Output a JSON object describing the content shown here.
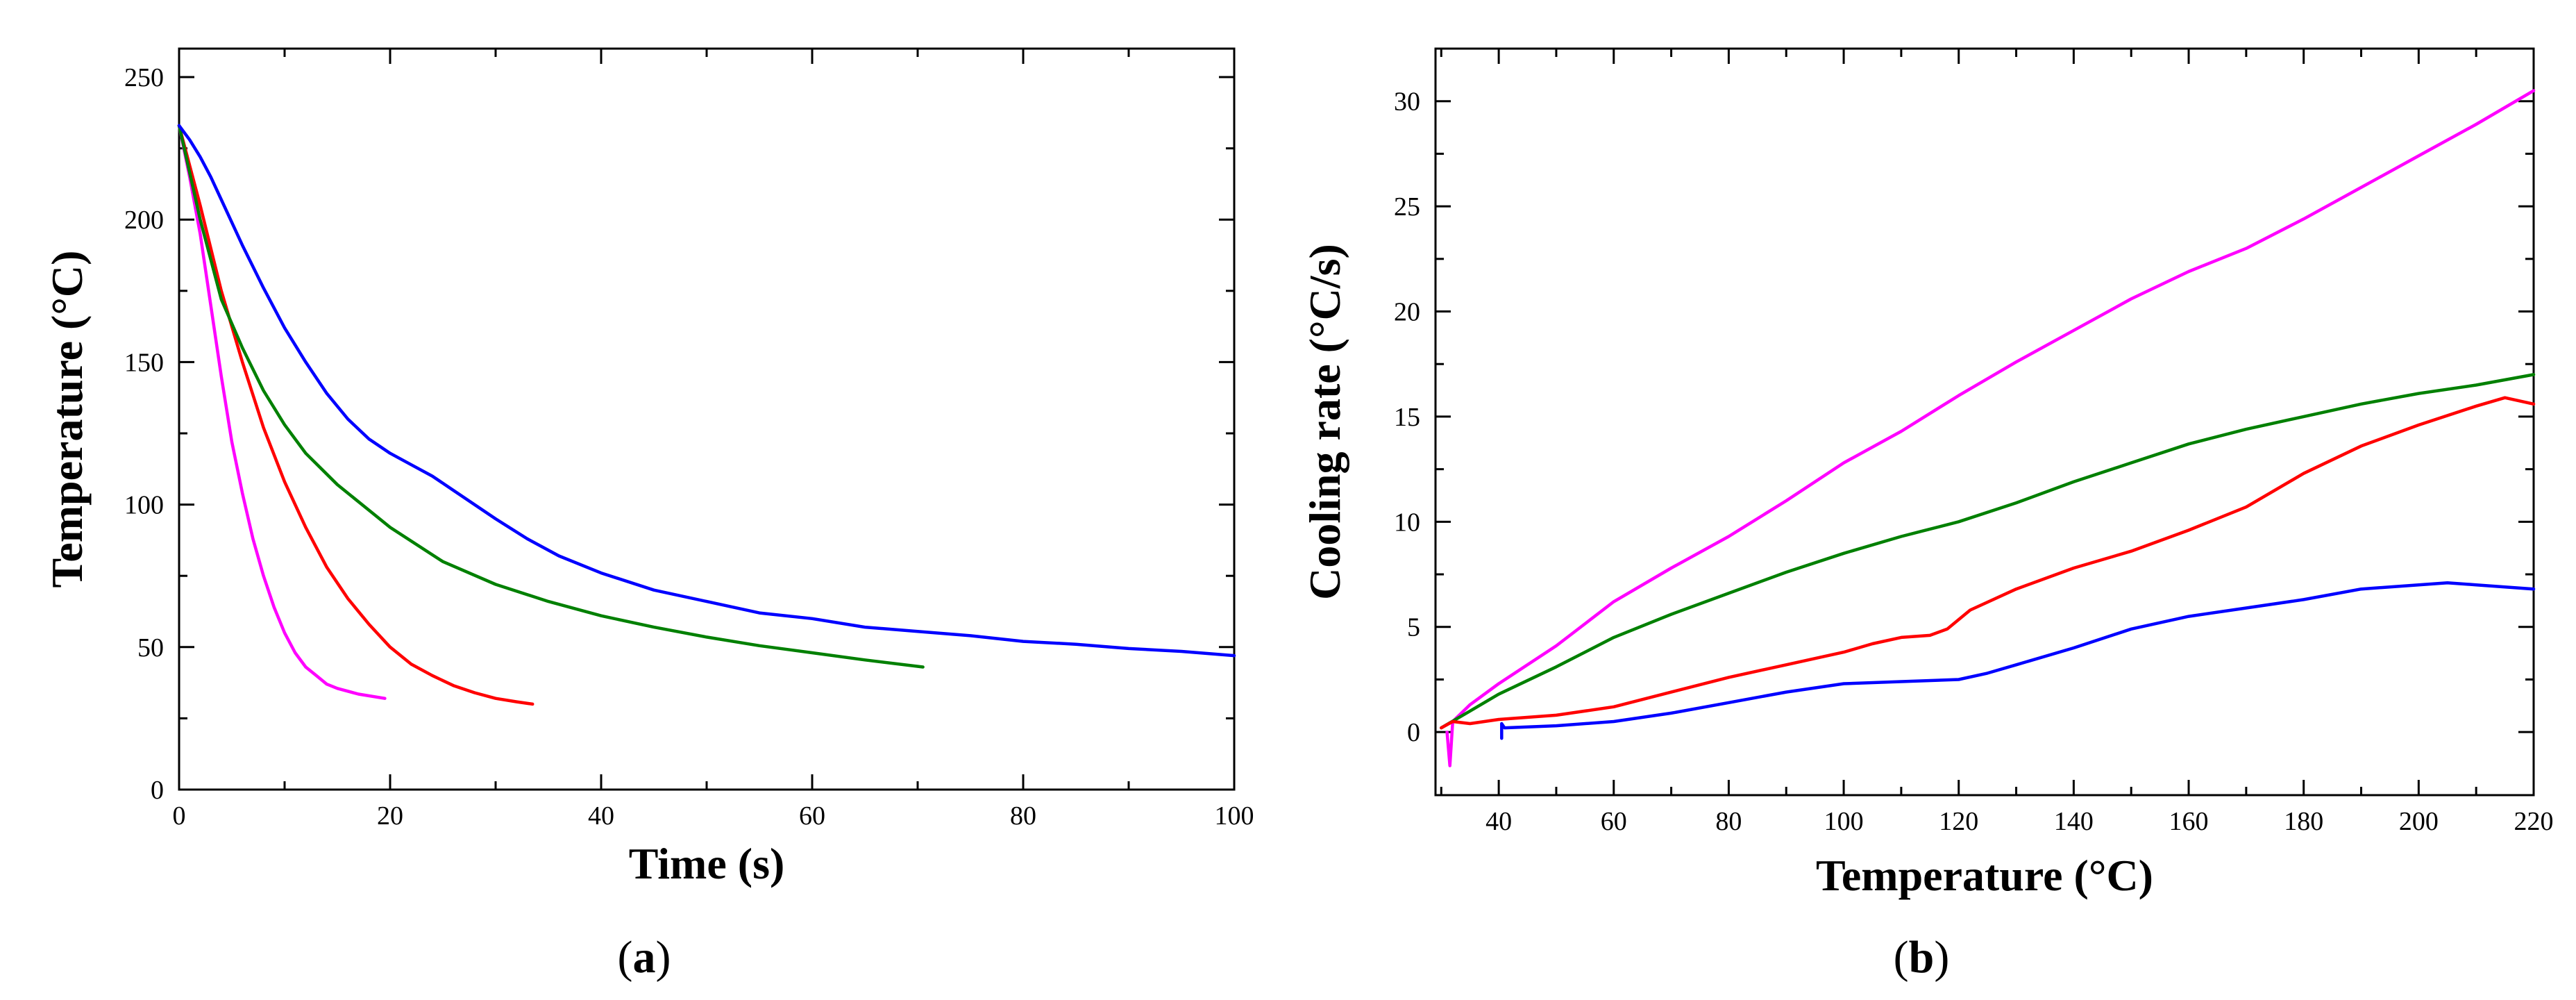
{
  "chart_data": [
    {
      "type": "line",
      "panel_label": "(a)",
      "xlabel": "Time (s)",
      "ylabel": "Temperature (°C)",
      "xlim": [
        0,
        100
      ],
      "ylim": [
        0,
        260
      ],
      "xticks": [
        0,
        20,
        40,
        60,
        80,
        100
      ],
      "yticks": [
        0,
        50,
        100,
        150,
        200,
        250
      ],
      "xminor": [
        10,
        30,
        50,
        70,
        90
      ],
      "yminor": [
        25,
        75,
        125,
        175,
        225
      ],
      "series": [
        {
          "name": "magenta",
          "color": "#ff00ff",
          "points": [
            [
              0,
              233
            ],
            [
              1,
              215
            ],
            [
              2,
              195
            ],
            [
              3,
              170
            ],
            [
              4,
              145
            ],
            [
              5,
              122
            ],
            [
              6,
              104
            ],
            [
              7,
              88
            ],
            [
              8,
              75
            ],
            [
              9,
              64
            ],
            [
              10,
              55
            ],
            [
              11,
              48
            ],
            [
              12,
              43
            ],
            [
              13,
              40
            ],
            [
              14,
              37
            ],
            [
              15,
              35.5
            ],
            [
              17,
              33.5
            ],
            [
              19.5,
              32
            ]
          ]
        },
        {
          "name": "red",
          "color": "#ff0000",
          "points": [
            [
              0,
              233
            ],
            [
              2,
              205
            ],
            [
              4,
              175
            ],
            [
              6,
              150
            ],
            [
              8,
              127
            ],
            [
              10,
              108
            ],
            [
              12,
              92
            ],
            [
              14,
              78
            ],
            [
              16,
              67
            ],
            [
              18,
              58
            ],
            [
              20,
              50
            ],
            [
              22,
              44
            ],
            [
              24,
              40
            ],
            [
              26,
              36.5
            ],
            [
              28,
              34
            ],
            [
              30,
              32
            ],
            [
              32,
              30.8
            ],
            [
              33.5,
              30
            ]
          ]
        },
        {
          "name": "green",
          "color": "#008000",
          "points": [
            [
              0,
              233
            ],
            [
              2,
              200
            ],
            [
              4,
              172
            ],
            [
              6,
              155
            ],
            [
              8,
              140
            ],
            [
              10,
              128
            ],
            [
              12,
              118
            ],
            [
              15,
              107
            ],
            [
              18,
              98
            ],
            [
              20,
              92
            ],
            [
              25,
              80
            ],
            [
              30,
              72
            ],
            [
              35,
              66
            ],
            [
              40,
              61
            ],
            [
              45,
              57
            ],
            [
              50,
              53.5
            ],
            [
              55,
              50.5
            ],
            [
              60,
              48
            ],
            [
              65,
              45.5
            ],
            [
              70.5,
              43
            ]
          ]
        },
        {
          "name": "blue",
          "color": "#0000ff",
          "points": [
            [
              0,
              233
            ],
            [
              1,
              228
            ],
            [
              2,
              222
            ],
            [
              3,
              215
            ],
            [
              4,
              207
            ],
            [
              5,
              199
            ],
            [
              6,
              191
            ],
            [
              8,
              176
            ],
            [
              10,
              162
            ],
            [
              12,
              150
            ],
            [
              14,
              139
            ],
            [
              16,
              130
            ],
            [
              18,
              123
            ],
            [
              20,
              118
            ],
            [
              22,
              114
            ],
            [
              24,
              110
            ],
            [
              26,
              105
            ],
            [
              28,
              100
            ],
            [
              30,
              95
            ],
            [
              33,
              88
            ],
            [
              36,
              82
            ],
            [
              40,
              76
            ],
            [
              45,
              70
            ],
            [
              50,
              66
            ],
            [
              55,
              62
            ],
            [
              60,
              60
            ],
            [
              65,
              57
            ],
            [
              70,
              55.5
            ],
            [
              75,
              54
            ],
            [
              80,
              52
            ],
            [
              85,
              51
            ],
            [
              90,
              49.5
            ],
            [
              95,
              48.5
            ],
            [
              100,
              47
            ]
          ]
        }
      ]
    },
    {
      "type": "line",
      "panel_label": "(b)",
      "xlabel": "Temperature (°C)",
      "ylabel": "Cooling rate (°C/s)",
      "xlim": [
        29,
        220
      ],
      "ylim": [
        -3,
        32.5
      ],
      "xticks": [
        40,
        60,
        80,
        100,
        120,
        140,
        160,
        180,
        200,
        220
      ],
      "yticks": [
        0,
        5,
        10,
        15,
        20,
        25,
        30
      ],
      "xminor": [
        30,
        50,
        70,
        90,
        110,
        130,
        150,
        170,
        190,
        210
      ],
      "yminor": [
        2.5,
        7.5,
        12.5,
        17.5,
        22.5,
        27.5
      ],
      "series": [
        {
          "name": "magenta",
          "color": "#ff00ff",
          "points": [
            [
              31,
              0
            ],
            [
              31.5,
              -1.6
            ],
            [
              32,
              0.5
            ],
            [
              35,
              1.3
            ],
            [
              40,
              2.3
            ],
            [
              50,
              4.1
            ],
            [
              60,
              6.2
            ],
            [
              70,
              7.8
            ],
            [
              80,
              9.3
            ],
            [
              90,
              11.0
            ],
            [
              100,
              12.8
            ],
            [
              110,
              14.3
            ],
            [
              120,
              16.0
            ],
            [
              130,
              17.6
            ],
            [
              140,
              19.1
            ],
            [
              150,
              20.6
            ],
            [
              160,
              21.9
            ],
            [
              170,
              23.0
            ],
            [
              180,
              24.4
            ],
            [
              190,
              25.9
            ],
            [
              200,
              27.4
            ],
            [
              210,
              28.9
            ],
            [
              220,
              30.5
            ]
          ]
        },
        {
          "name": "green",
          "color": "#008000",
          "points": [
            [
              30,
              0.2
            ],
            [
              35,
              1.0
            ],
            [
              40,
              1.8
            ],
            [
              50,
              3.1
            ],
            [
              60,
              4.5
            ],
            [
              70,
              5.6
            ],
            [
              80,
              6.6
            ],
            [
              90,
              7.6
            ],
            [
              100,
              8.5
            ],
            [
              110,
              9.3
            ],
            [
              120,
              10.0
            ],
            [
              130,
              10.9
            ],
            [
              140,
              11.9
            ],
            [
              150,
              12.8
            ],
            [
              160,
              13.7
            ],
            [
              170,
              14.4
            ],
            [
              180,
              15.0
            ],
            [
              190,
              15.6
            ],
            [
              200,
              16.1
            ],
            [
              210,
              16.5
            ],
            [
              220,
              17.0
            ]
          ]
        },
        {
          "name": "red",
          "color": "#ff0000",
          "points": [
            [
              30,
              0.2
            ],
            [
              32,
              0.5
            ],
            [
              35,
              0.4
            ],
            [
              40,
              0.6
            ],
            [
              50,
              0.8
            ],
            [
              60,
              1.2
            ],
            [
              70,
              1.9
            ],
            [
              80,
              2.6
            ],
            [
              90,
              3.2
            ],
            [
              100,
              3.8
            ],
            [
              105,
              4.2
            ],
            [
              110,
              4.5
            ],
            [
              115,
              4.6
            ],
            [
              118,
              4.9
            ],
            [
              122,
              5.8
            ],
            [
              130,
              6.8
            ],
            [
              140,
              7.8
            ],
            [
              150,
              8.6
            ],
            [
              160,
              9.6
            ],
            [
              170,
              10.7
            ],
            [
              180,
              12.3
            ],
            [
              190,
              13.6
            ],
            [
              200,
              14.6
            ],
            [
              210,
              15.5
            ],
            [
              215,
              15.9
            ],
            [
              220,
              15.6
            ]
          ]
        },
        {
          "name": "blue",
          "color": "#0000ff",
          "points": [
            [
              40.5,
              -0.3
            ],
            [
              40.5,
              0.4
            ],
            [
              41,
              0.2
            ],
            [
              50,
              0.3
            ],
            [
              60,
              0.5
            ],
            [
              70,
              0.9
            ],
            [
              80,
              1.4
            ],
            [
              90,
              1.9
            ],
            [
              100,
              2.3
            ],
            [
              110,
              2.4
            ],
            [
              120,
              2.5
            ],
            [
              125,
              2.8
            ],
            [
              130,
              3.2
            ],
            [
              140,
              4.0
            ],
            [
              150,
              4.9
            ],
            [
              160,
              5.5
            ],
            [
              170,
              5.9
            ],
            [
              180,
              6.3
            ],
            [
              190,
              6.8
            ],
            [
              200,
              7.0
            ],
            [
              205,
              7.1
            ],
            [
              210,
              7.0
            ],
            [
              220,
              6.8
            ]
          ]
        }
      ]
    }
  ]
}
